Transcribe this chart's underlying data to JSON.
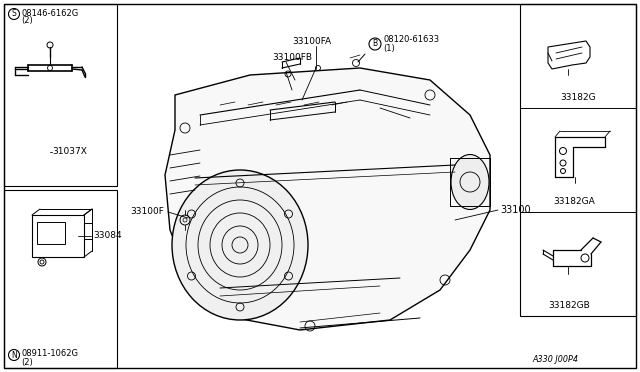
{
  "bg_color": "#ffffff",
  "line_color": "#000000",
  "text_color": "#000000",
  "diagram_code": "A330 J00P4",
  "parts": {
    "center_main": "33100",
    "center_fa": "33100FA",
    "center_fb": "33100FB",
    "center_f": "33100F",
    "bolt_b_label": "08120-61633",
    "bolt_b_qty": "(1)",
    "top_left_s_label": "08146-6162G",
    "top_left_s_qty": "(2)",
    "top_left_part": "31037X",
    "bottom_left_n_label": "08911-1062G",
    "bottom_left_n_qty": "(2)",
    "bottom_left_part": "33084",
    "right_top": "33182G",
    "right_mid": "33182GA",
    "right_bot": "33182GB"
  }
}
